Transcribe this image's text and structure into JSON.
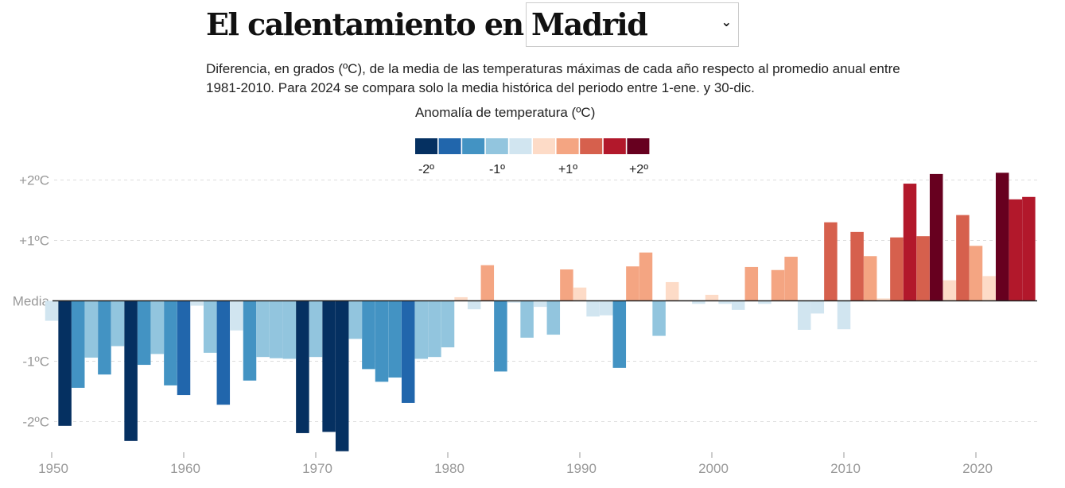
{
  "header": {
    "title": "El calentamiento en",
    "city_select": {
      "value": "Madrid",
      "icon": "chevron-down-icon"
    },
    "subtitle": "Diferencia, en grados (ºC), de la media de las temperaturas máximas de cada año respecto al promedio anual entre 1981-2010. Para 2024 se compara solo la media histórica del periodo entre 1-ene. y 30-dic."
  },
  "chart_data": {
    "type": "bar",
    "legend": {
      "title": "Anomalía de temperatura (ºC)",
      "colors": [
        "#053061",
        "#2166ac",
        "#4393c3",
        "#92c5de",
        "#d1e5f0",
        "#fddbc7",
        "#f4a582",
        "#d6604d",
        "#b2182b",
        "#67001f"
      ],
      "thresholds": [
        -2,
        -1.5,
        -1,
        -0.5,
        0,
        0.5,
        1,
        1.5,
        2
      ],
      "labels": [
        "-2º",
        "-1º",
        "+1º",
        "+2º"
      ]
    },
    "x_start": 1950,
    "values": [
      -0.33,
      -2.07,
      -1.44,
      -0.94,
      -1.22,
      -0.75,
      -2.32,
      -1.06,
      -0.88,
      -1.4,
      -1.56,
      -0.08,
      -0.86,
      -1.72,
      -0.49,
      -1.32,
      -0.93,
      -0.95,
      -0.96,
      -2.19,
      -0.93,
      -2.17,
      -2.49,
      -0.63,
      -1.13,
      -1.34,
      -1.27,
      -1.69,
      -0.96,
      -0.93,
      -0.77,
      0.06,
      -0.14,
      0.59,
      -1.17,
      -0.03,
      -0.61,
      -0.1,
      -0.56,
      0.52,
      0.22,
      -0.26,
      -0.24,
      -1.11,
      0.57,
      0.8,
      -0.58,
      0.31,
      0.01,
      -0.05,
      0.1,
      -0.05,
      -0.15,
      0.56,
      -0.05,
      0.51,
      0.73,
      -0.48,
      -0.21,
      1.3,
      -0.47,
      1.14,
      0.74,
      0.04,
      1.05,
      1.94,
      1.07,
      2.1,
      0.34,
      1.42,
      0.91,
      0.41,
      2.12,
      1.68,
      1.72
    ],
    "y_ticks": [
      {
        "v": 2,
        "label": "+2ºC"
      },
      {
        "v": 1,
        "label": "+1ºC"
      },
      {
        "v": 0,
        "label": "Media"
      },
      {
        "v": -1,
        "label": "-1ºC"
      },
      {
        "v": -2,
        "label": "-2ºC"
      }
    ],
    "x_ticks": [
      1950,
      1960,
      1970,
      1980,
      1990,
      2000,
      2010,
      2020
    ],
    "xlabel": "",
    "ylabel": "",
    "ylim": [
      -2.6,
      2.4
    ],
    "grid": true
  }
}
